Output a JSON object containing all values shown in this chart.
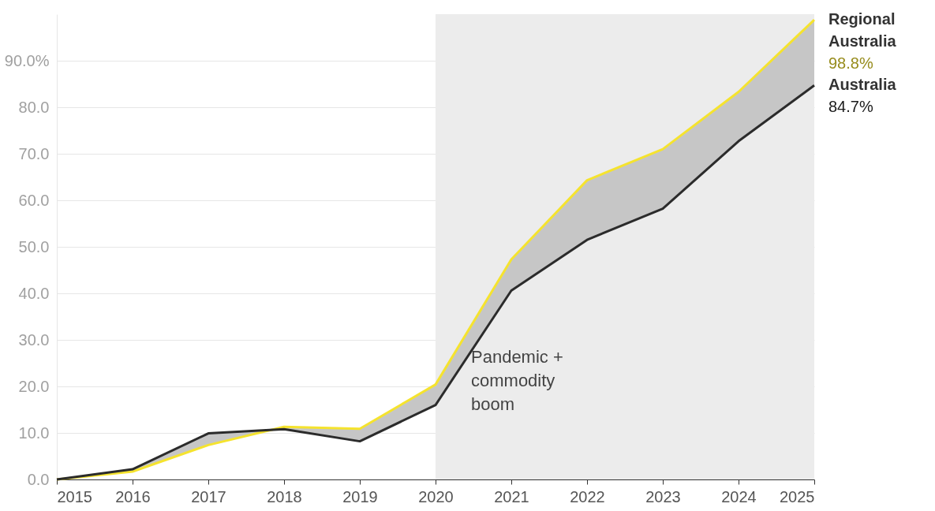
{
  "chart_data": {
    "type": "line",
    "x": [
      2015,
      2016,
      2017,
      2018,
      2019,
      2020,
      2021,
      2022,
      2023,
      2024,
      2025
    ],
    "series": [
      {
        "name": "Regional Australia",
        "color": "#f5e32e",
        "values": [
          0,
          1.7,
          7.4,
          11.3,
          10.9,
          20.4,
          47.3,
          64.3,
          71.0,
          83.3,
          98.8
        ],
        "lower": [
          0,
          2.2,
          9.9,
          10.8,
          8.2,
          16.0,
          40.6,
          51.5,
          58.2,
          72.7,
          84.7
        ],
        "upper": [
          0,
          1.7,
          7.4,
          11.3,
          10.9,
          20.4,
          47.3,
          64.3,
          71.0,
          83.3,
          98.8
        ],
        "value_labels": [
          null,
          null,
          null,
          null,
          null,
          null,
          null,
          null,
          null,
          null,
          "98.8%"
        ]
      },
      {
        "name": "Australia",
        "color": "#2b2b2b",
        "values": [
          0,
          2.2,
          9.9,
          10.8,
          8.2,
          16.0,
          40.6,
          51.5,
          58.2,
          72.7,
          84.7
        ],
        "value_labels": [
          null,
          null,
          null,
          null,
          null,
          null,
          null,
          null,
          null,
          null,
          "84.7%"
        ]
      }
    ],
    "xlim": [
      2015,
      2025
    ],
    "xticks": [
      2015,
      2016,
      2017,
      2018,
      2019,
      2020,
      2021,
      2022,
      2023,
      2024,
      2025
    ],
    "ylim": [
      0,
      100
    ],
    "yticks": [
      {
        "value": 0,
        "label": "0.0"
      },
      {
        "value": 10,
        "label": "10.0"
      },
      {
        "value": 20,
        "label": "20.0"
      },
      {
        "value": 30,
        "label": "30.0"
      },
      {
        "value": 40,
        "label": "40.0"
      },
      {
        "value": 50,
        "label": "50.0"
      },
      {
        "value": 60,
        "label": "60.0"
      },
      {
        "value": 70,
        "label": "70.0"
      },
      {
        "value": 80,
        "label": "80.0"
      },
      {
        "value": 90,
        "label": "90.0%"
      }
    ],
    "bands": [
      {
        "axis": "x",
        "from": 2020,
        "to": 2025,
        "label": "Pandemic +\ncommodity\nboom",
        "color": "#ececec"
      }
    ],
    "grid": "y",
    "marker": "none",
    "line_style": "solid"
  }
}
